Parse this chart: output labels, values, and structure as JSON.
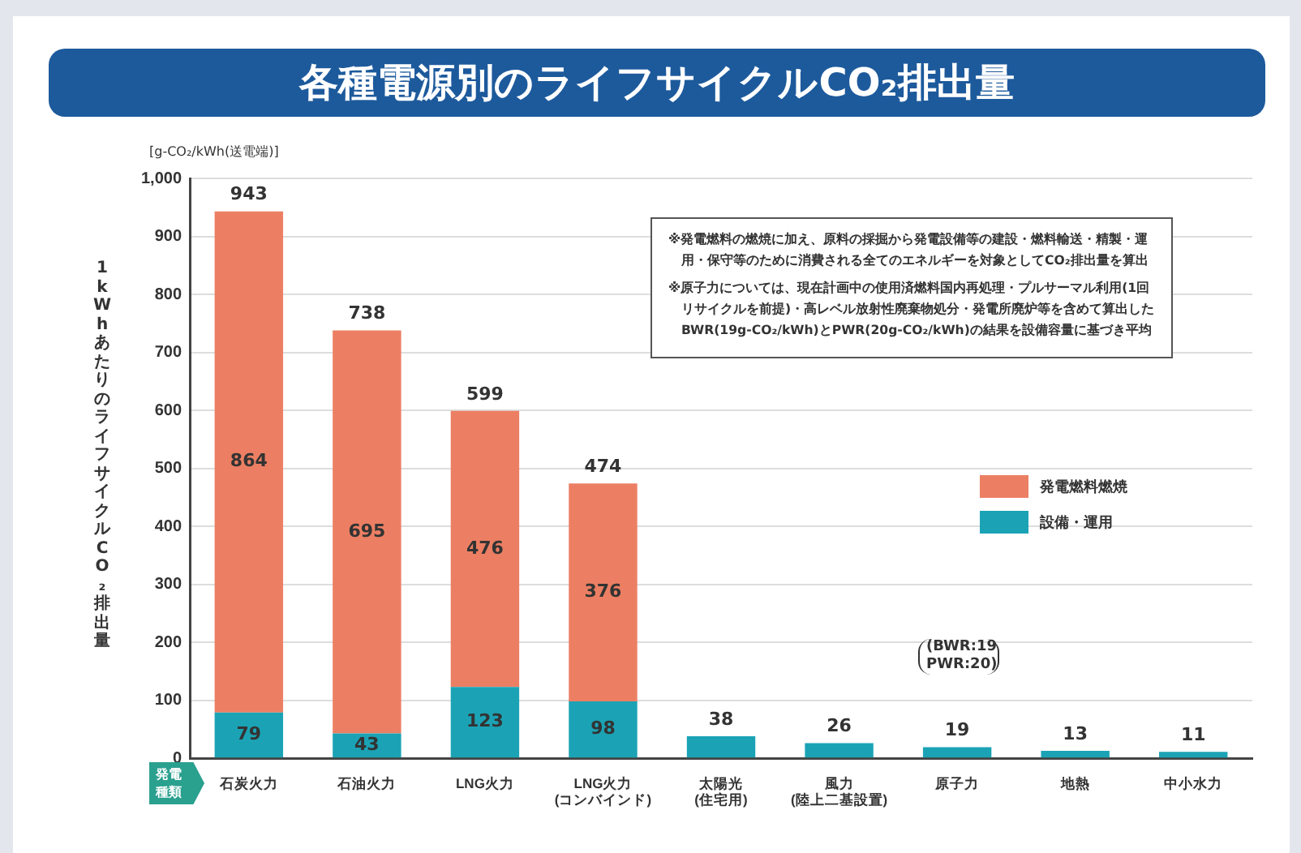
{
  "chart_data": {
    "type": "bar",
    "title": "各種電源別のライフサイクルCO₂排出量",
    "ylabel": "1kWhあたりのライフサイクルCO₂排出量",
    "xlabel": "発電種類",
    "categories": [
      "石炭火力",
      "石油火力",
      "LNG火力",
      "LNG火力(コンバインド)",
      "太陽光(住宅用)",
      "風力(陸上二基設置)",
      "原子力",
      "地熱",
      "中小水力"
    ],
    "stacked": true,
    "series": [
      {
        "name": "設備・運用",
        "color": "#1ba3b5",
        "values": [
          79,
          43,
          123,
          98,
          38,
          26,
          19,
          13,
          11
        ],
        "value_labels": [
          "79",
          "43",
          "123",
          "98",
          null,
          null,
          null,
          null,
          null
        ]
      },
      {
        "name": "発電燃料燃焼",
        "color": "#ec7f63",
        "values": [
          864,
          695,
          476,
          376,
          null,
          null,
          null,
          null,
          null
        ],
        "value_labels": [
          "864",
          "695",
          "476",
          "376",
          null,
          null,
          null,
          null,
          null
        ]
      }
    ],
    "totals": [
      "943",
      "738",
      "599",
      "474",
      "38",
      "26",
      "19",
      "13",
      "11"
    ],
    "ylim": [
      0,
      1000
    ],
    "yticks": [
      0,
      100,
      200,
      300,
      400,
      500,
      600,
      700,
      800,
      900,
      {
        "value": 1000,
        "label": "1,000"
      }
    ],
    "grid": "y",
    "legend": "right",
    "annotations": [
      "[g-CO₂/kWh(送電端)]",
      "※発電燃料の燃焼に加え、原料の採掘から発電設備等の建設・燃料輸送・精製・運用・保守等のために消費される全てのエネルギーを対象としてCO₂排出量を算出",
      "※原子力については、現在計画中の使用済燃料国内再処理・プルサーマル利用(1回リサイクルを前提)・高レベル放射性廃棄物処分・発電所廃炉等を含めて算出したBWR(19g-CO₂/kWh)とPWR(20g-CO₂/kWh)の結果を設備容量に基づき平均",
      "(BWR:19 PWR:20)"
    ]
  }
}
